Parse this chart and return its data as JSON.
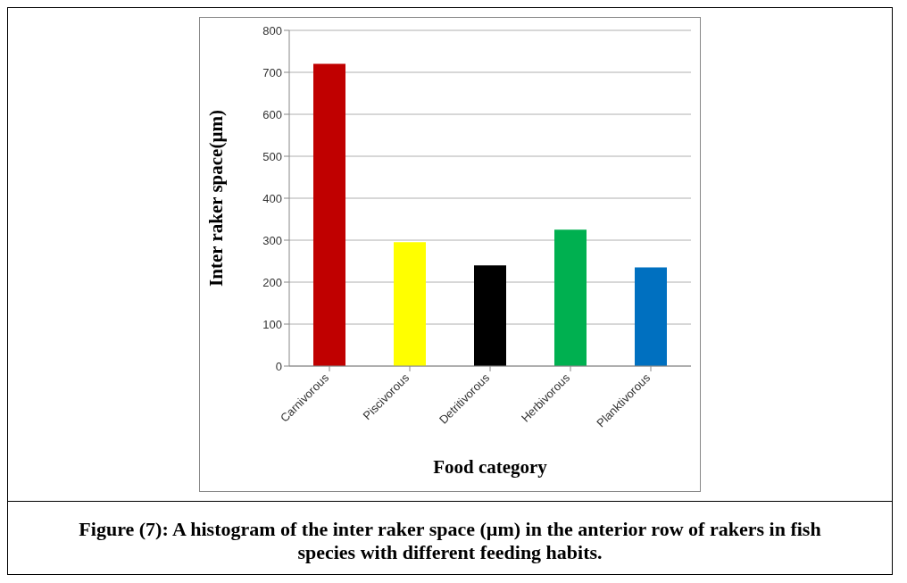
{
  "chart_data": {
    "type": "bar",
    "xlabel": "Food category",
    "ylabel": "Inter raker space(µm)",
    "categories": [
      "Carnivorous",
      "Piscivorous",
      "Detritivorous",
      "Herbivorous",
      "Planktivorous"
    ],
    "values": [
      720,
      295,
      240,
      325,
      235
    ],
    "colors": [
      "#c00000",
      "#ffff00",
      "#000000",
      "#00b050",
      "#0070c0"
    ],
    "ylim": [
      0,
      800
    ],
    "yticks": [
      0,
      100,
      200,
      300,
      400,
      500,
      600,
      700,
      800
    ],
    "grid": "y",
    "annotations": [
      "Figure (7): A histogram of the inter raker space (µm) in the anterior row of rakers in fish species with different feeding habits."
    ]
  }
}
